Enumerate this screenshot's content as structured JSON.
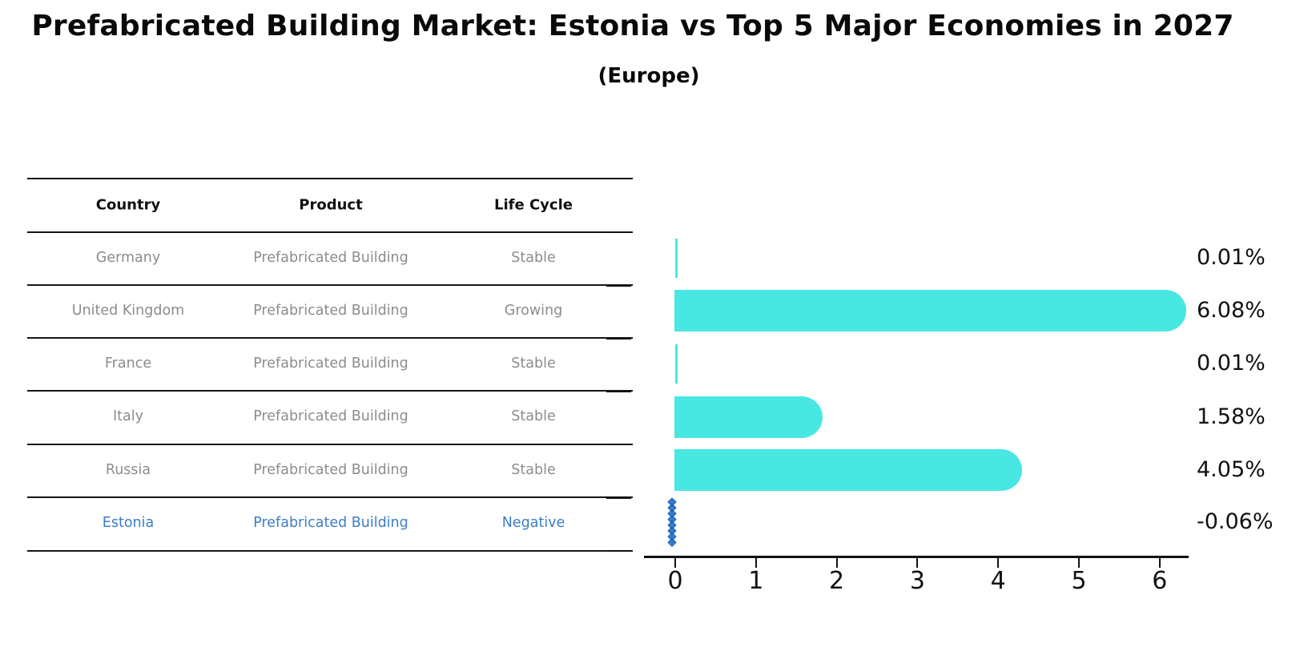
{
  "header": {
    "title": "Prefabricated Building Market: Estonia vs Top 5 Major Economies in 2027",
    "subtitle": "(Europe)"
  },
  "table": {
    "columns": [
      "Country",
      "Product",
      "Life Cycle"
    ],
    "rows": [
      {
        "country": "Germany",
        "product": "Prefabricated Building",
        "life_cycle": "Stable"
      },
      {
        "country": "United Kingdom",
        "product": "Prefabricated Building",
        "life_cycle": "Growing"
      },
      {
        "country": "France",
        "product": "Prefabricated Building",
        "life_cycle": "Stable"
      },
      {
        "country": "Italy",
        "product": "Prefabricated Building",
        "life_cycle": "Stable"
      },
      {
        "country": "Russia",
        "product": "Prefabricated Building",
        "life_cycle": "Stable"
      },
      {
        "country": "Estonia",
        "product": "Prefabricated Building",
        "life_cycle": "Negative"
      }
    ],
    "text_color": "#8c8c8c",
    "header_color": "#111111",
    "highlight_color": "#3b7ec6",
    "highlight_row": 5
  },
  "chart_data": {
    "type": "bar",
    "orientation": "horizontal",
    "title": "Prefabricated Building Market: Estonia vs Top 5 Major Economies in 2027",
    "subtitle": "(Europe)",
    "categories": [
      "Germany",
      "United Kingdom",
      "France",
      "Italy",
      "Russia",
      "Estonia"
    ],
    "values": [
      0.01,
      6.08,
      0.01,
      1.58,
      4.05,
      -0.06
    ],
    "value_labels": [
      "0.01%",
      "6.08%",
      "0.01%",
      "1.58%",
      "4.05%",
      "-0.06%"
    ],
    "xticks": [
      "0",
      "1",
      "2",
      "3",
      "4",
      "5",
      "6"
    ],
    "xlim": [
      -0.4,
      6.35
    ],
    "grid": false,
    "legend": "none",
    "bar_color": "#49e7e1",
    "highlight_color": "#2f7fd9",
    "highlight_index": 5,
    "xlabel": "",
    "ylabel": ""
  }
}
